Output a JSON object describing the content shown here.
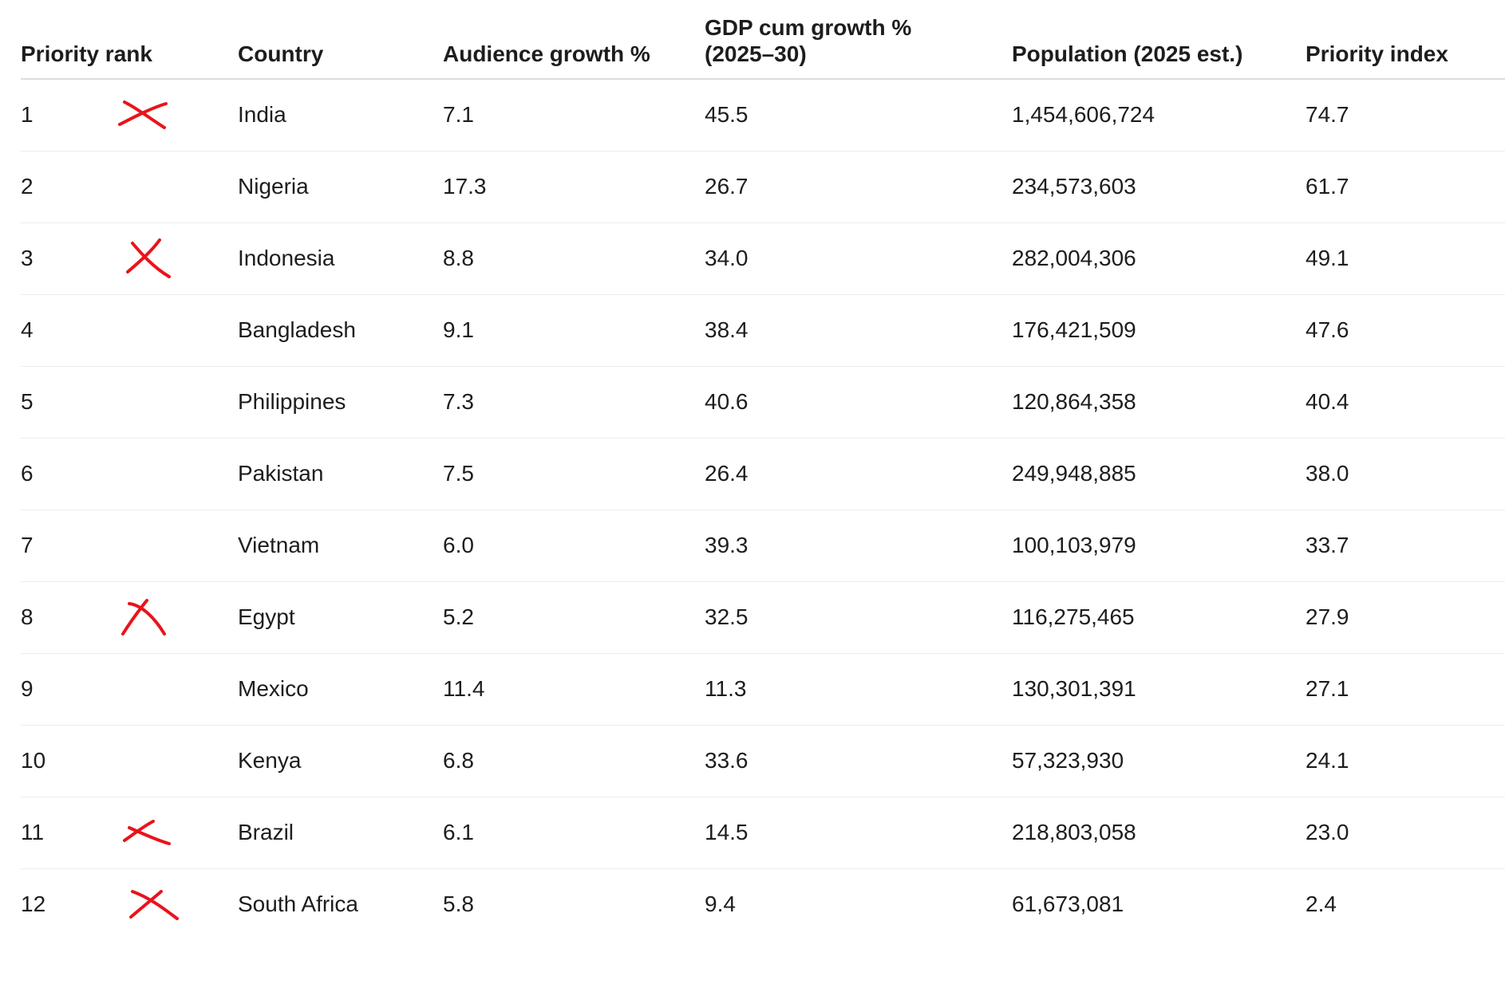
{
  "table": {
    "headers": {
      "rank": "Priority rank",
      "country": "Country",
      "audience": "Audience growth %",
      "gdp_line1": "GDP cum growth %",
      "gdp_line2": "(2025–30)",
      "population": "Population (2025 est.)",
      "priority": "Priority index"
    },
    "rows": [
      {
        "rank": "1",
        "country": "India",
        "audience": "7.1",
        "gdp": "45.5",
        "population": "1,454,606,724",
        "priority": "74.7",
        "crossed": true
      },
      {
        "rank": "2",
        "country": "Nigeria",
        "audience": "17.3",
        "gdp": "26.7",
        "population": "234,573,603",
        "priority": "61.7",
        "crossed": false
      },
      {
        "rank": "3",
        "country": "Indonesia",
        "audience": "8.8",
        "gdp": "34.0",
        "population": "282,004,306",
        "priority": "49.1",
        "crossed": true
      },
      {
        "rank": "4",
        "country": "Bangladesh",
        "audience": "9.1",
        "gdp": "38.4",
        "population": "176,421,509",
        "priority": "47.6",
        "crossed": false
      },
      {
        "rank": "5",
        "country": "Philippines",
        "audience": "7.3",
        "gdp": "40.6",
        "population": "120,864,358",
        "priority": "40.4",
        "crossed": false
      },
      {
        "rank": "6",
        "country": "Pakistan",
        "audience": "7.5",
        "gdp": "26.4",
        "population": "249,948,885",
        "priority": "38.0",
        "crossed": false
      },
      {
        "rank": "7",
        "country": "Vietnam",
        "audience": "6.0",
        "gdp": "39.3",
        "population": "100,103,979",
        "priority": "33.7",
        "crossed": false
      },
      {
        "rank": "8",
        "country": "Egypt",
        "audience": "5.2",
        "gdp": "32.5",
        "population": "116,275,465",
        "priority": "27.9",
        "crossed": true
      },
      {
        "rank": "9",
        "country": "Mexico",
        "audience": "11.4",
        "gdp": "11.3",
        "population": "130,301,391",
        "priority": "27.1",
        "crossed": false
      },
      {
        "rank": "10",
        "country": "Kenya",
        "audience": "6.8",
        "gdp": "33.6",
        "population": "57,323,930",
        "priority": "24.1",
        "crossed": false
      },
      {
        "rank": "11",
        "country": "Brazil",
        "audience": "6.1",
        "gdp": "14.5",
        "population": "218,803,058",
        "priority": "23.0",
        "crossed": true
      },
      {
        "rank": "12",
        "country": "South Africa",
        "audience": "5.8",
        "gdp": "9.4",
        "population": "61,673,081",
        "priority": "2.4",
        "crossed": true
      }
    ]
  },
  "colors": {
    "cross_mark": "#e8141b",
    "text": "#1d1d1f",
    "divider": "#ececec"
  },
  "icons": {
    "cross_mark": "red-cross-icon"
  }
}
